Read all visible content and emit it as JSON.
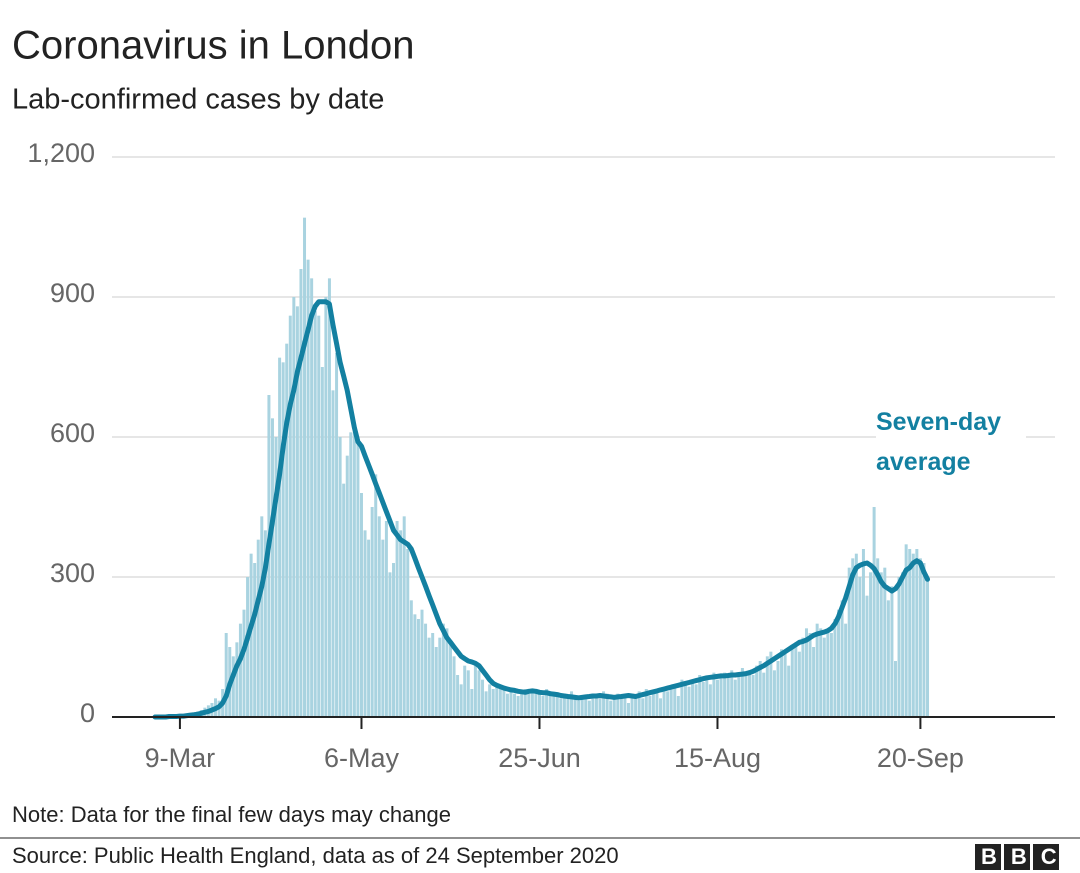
{
  "chart_data": {
    "type": "bar",
    "title": "Coronavirus in London",
    "subtitle": "Lab-confirmed cases by date",
    "note": "Note: Data for the final few days may change",
    "source": "Source: Public Health England, data as of 24 September 2020",
    "logo": "BBC",
    "categories": [
      null,
      null,
      null,
      null,
      null,
      null,
      null,
      "9-Mar",
      null,
      null,
      null,
      null,
      null,
      null,
      null,
      null,
      null,
      null,
      null,
      null,
      null,
      null,
      null,
      null,
      null,
      null,
      null,
      null,
      null,
      null,
      null,
      null,
      null,
      null,
      null,
      null,
      null,
      null,
      null,
      null,
      null,
      null,
      null,
      null,
      null,
      null,
      null,
      null,
      null,
      null,
      null,
      null,
      null,
      null,
      null,
      null,
      null,
      null,
      "6-May",
      null,
      null,
      null,
      null,
      null,
      null,
      null,
      null,
      null,
      null,
      null,
      null,
      null,
      null,
      null,
      null,
      null,
      null,
      null,
      null,
      null,
      null,
      null,
      null,
      null,
      null,
      null,
      null,
      null,
      null,
      null,
      null,
      null,
      null,
      null,
      null,
      null,
      null,
      null,
      null,
      null,
      null,
      null,
      null,
      null,
      null,
      null,
      null,
      null,
      "25-Jun",
      null,
      null,
      null,
      null,
      null,
      null,
      null,
      null,
      null,
      null,
      null,
      null,
      null,
      null,
      null,
      null,
      null,
      null,
      null,
      null,
      null,
      null,
      null,
      null,
      null,
      null,
      null,
      null,
      null,
      null,
      null,
      null,
      null,
      null,
      null,
      null,
      null,
      null,
      null,
      null,
      null,
      null,
      null,
      null,
      null,
      null,
      null,
      null,
      null,
      "15-Aug",
      null,
      null,
      null,
      null,
      null,
      null,
      null,
      null,
      null,
      null,
      null,
      null,
      null,
      null,
      null,
      null,
      null,
      null,
      null,
      null,
      null,
      null,
      null,
      null,
      null,
      null,
      null,
      null,
      null,
      null,
      null,
      null,
      null,
      null,
      null,
      null,
      null,
      null,
      null,
      null,
      null,
      null,
      null,
      null,
      null,
      null,
      null,
      null,
      null,
      null,
      null,
      null,
      null,
      null,
      null,
      null,
      "20-Sep",
      null,
      null
    ],
    "series": [
      {
        "type": "bar",
        "color": "#a9d3e0",
        "values": [
          0,
          0,
          0,
          1,
          1,
          2,
          2,
          3,
          3,
          5,
          8,
          10,
          12,
          15,
          20,
          25,
          30,
          40,
          35,
          60,
          180,
          150,
          130,
          160,
          200,
          230,
          300,
          350,
          330,
          380,
          430,
          400,
          690,
          640,
          600,
          770,
          760,
          800,
          860,
          900,
          880,
          960,
          1070,
          980,
          940,
          870,
          860,
          750,
          900,
          940,
          700,
          780,
          600,
          500,
          560,
          610,
          620,
          590,
          480,
          400,
          380,
          450,
          520,
          430,
          380,
          420,
          310,
          330,
          420,
          400,
          430,
          360,
          250,
          220,
          210,
          230,
          200,
          170,
          180,
          150,
          170,
          200,
          190,
          160,
          130,
          90,
          70,
          110,
          100,
          60,
          110,
          100,
          80,
          55,
          70,
          60,
          70,
          65,
          60,
          50,
          55,
          50,
          45,
          55,
          60,
          50,
          55,
          60,
          50,
          45,
          60,
          55,
          50,
          45,
          40,
          50,
          45,
          55,
          40,
          35,
          45,
          40,
          35,
          50,
          45,
          40,
          55,
          50,
          35,
          45,
          50,
          40,
          45,
          30,
          50,
          45,
          55,
          40,
          60,
          45,
          50,
          55,
          40,
          60,
          55,
          65,
          70,
          45,
          80,
          75,
          65,
          80,
          70,
          90,
          75,
          85,
          70,
          95,
          80,
          90,
          95,
          85,
          100,
          80,
          90,
          105,
          95,
          100,
          90,
          110,
          120,
          95,
          130,
          140,
          100,
          120,
          145,
          135,
          110,
          150,
          160,
          140,
          170,
          190,
          180,
          150,
          200,
          190,
          170,
          185,
          180,
          210,
          230,
          250,
          200,
          320,
          340,
          350,
          300,
          360,
          260,
          310,
          450,
          340,
          310,
          320,
          250,
          280,
          120,
          300,
          310,
          370,
          360,
          350,
          360,
          340,
          330,
          300
        ]
      },
      {
        "type": "line",
        "name": "Seven-day average",
        "color": "#1380a1",
        "values": [
          0,
          0,
          0,
          0,
          1,
          1,
          1,
          2,
          2,
          3,
          4,
          5,
          6,
          8,
          10,
          12,
          15,
          18,
          22,
          30,
          45,
          70,
          90,
          110,
          125,
          145,
          170,
          195,
          220,
          250,
          280,
          320,
          370,
          420,
          470,
          520,
          580,
          630,
          670,
          700,
          740,
          770,
          800,
          830,
          860,
          880,
          890,
          890,
          890,
          885,
          840,
          800,
          760,
          730,
          700,
          660,
          620,
          590,
          580,
          560,
          540,
          520,
          500,
          480,
          460,
          440,
          420,
          400,
          390,
          380,
          375,
          370,
          360,
          340,
          320,
          300,
          280,
          260,
          240,
          220,
          200,
          185,
          170,
          160,
          150,
          140,
          130,
          125,
          120,
          118,
          115,
          110,
          100,
          90,
          80,
          72,
          68,
          65,
          62,
          60,
          58,
          57,
          55,
          54,
          53,
          55,
          56,
          55,
          53,
          52,
          52,
          50,
          49,
          48,
          46,
          45,
          44,
          43,
          42,
          41,
          42,
          43,
          44,
          45,
          45,
          46,
          45,
          44,
          43,
          42,
          43,
          44,
          45,
          46,
          45,
          44,
          46,
          48,
          50,
          52,
          54,
          56,
          58,
          60,
          62,
          64,
          66,
          68,
          70,
          72,
          74,
          76,
          78,
          80,
          82,
          84,
          85,
          86,
          87,
          88,
          88,
          89,
          90,
          90,
          91,
          92,
          93,
          95,
          98,
          102,
          106,
          110,
          115,
          120,
          125,
          130,
          135,
          140,
          145,
          150,
          155,
          160,
          162,
          165,
          170,
          175,
          178,
          180,
          182,
          185,
          190,
          200,
          215,
          235,
          255,
          280,
          305,
          320,
          325,
          328,
          330,
          325,
          318,
          305,
          290,
          280,
          275,
          270,
          275,
          285,
          300,
          315,
          320,
          330,
          335,
          330,
          310,
          295
        ]
      }
    ],
    "ylim": [
      0,
      1200
    ],
    "yticks": [
      0,
      300,
      600,
      900,
      {
        "value": 1200,
        "label": "1,200"
      }
    ],
    "grid": true
  }
}
